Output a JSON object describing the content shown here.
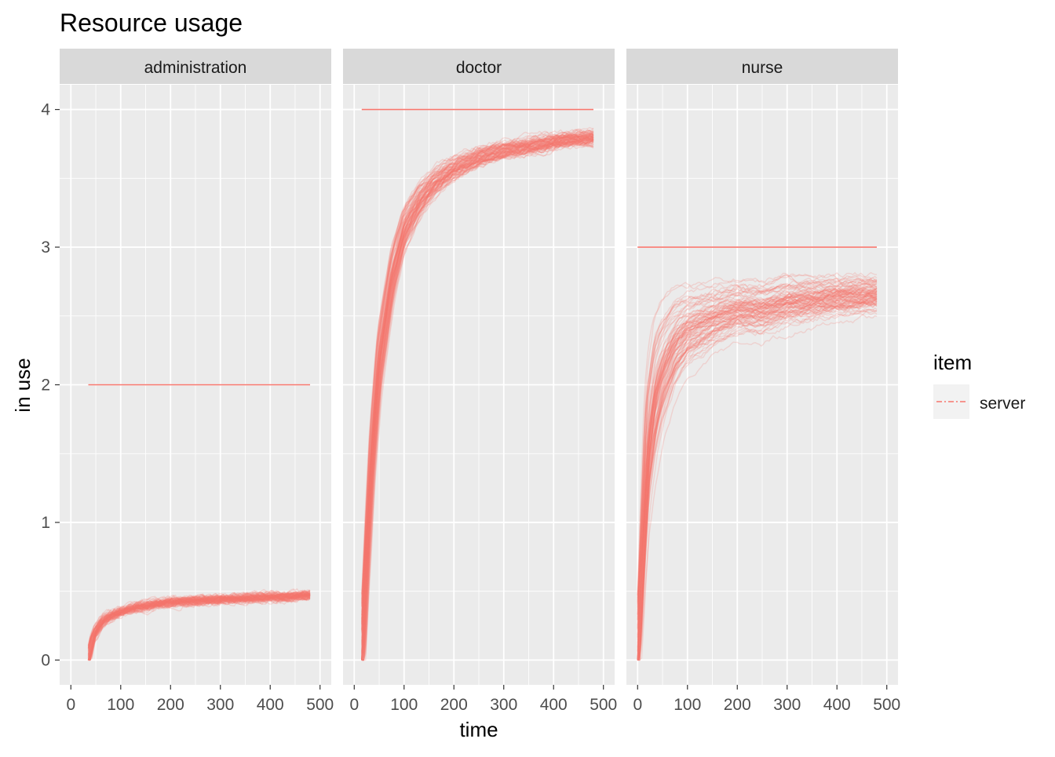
{
  "chart_data": {
    "type": "line",
    "title": "Resource usage",
    "xlabel": "time",
    "ylabel": "in use",
    "xlim": [
      0,
      500
    ],
    "ylim": [
      0,
      4
    ],
    "x_ticks": [
      "0",
      "100",
      "200",
      "300",
      "400",
      "500"
    ],
    "y_ticks": [
      "0",
      "1",
      "2",
      "3",
      "4"
    ],
    "grid": true,
    "legend": {
      "title": "item",
      "placement": "right",
      "entries": [
        {
          "label": "server",
          "color": "#F8766D",
          "style": "dashed"
        }
      ]
    },
    "line_color": "#F8766D",
    "series_note": "100 replications per panel, semi-transparent lines",
    "panels": [
      {
        "name": "administration",
        "capacity": {
          "x": [
            35,
            480
          ],
          "y": 2
        },
        "usage_envelope": {
          "x": [
            35,
            45,
            55,
            65,
            80,
            100,
            130,
            160,
            200,
            250,
            300,
            350,
            400,
            440,
            480
          ],
          "y_mean": [
            0.0,
            0.18,
            0.24,
            0.29,
            0.32,
            0.35,
            0.38,
            0.4,
            0.42,
            0.43,
            0.44,
            0.45,
            0.46,
            0.46,
            0.47
          ],
          "spread": [
            0.0,
            0.05,
            0.05,
            0.04,
            0.04,
            0.03,
            0.03,
            0.03,
            0.02,
            0.02,
            0.02,
            0.02,
            0.02,
            0.02,
            0.02
          ]
        }
      },
      {
        "name": "doctor",
        "capacity": {
          "x": [
            15,
            480
          ],
          "y": 4
        },
        "usage_envelope": {
          "x": [
            15,
            25,
            35,
            50,
            75,
            100,
            130,
            160,
            200,
            250,
            300,
            350,
            400,
            440,
            480
          ],
          "y_mean": [
            0.0,
            0.8,
            1.5,
            2.2,
            2.8,
            3.15,
            3.35,
            3.48,
            3.58,
            3.66,
            3.71,
            3.74,
            3.77,
            3.79,
            3.8
          ],
          "spread": [
            0.0,
            0.35,
            0.45,
            0.45,
            0.35,
            0.25,
            0.2,
            0.15,
            0.12,
            0.1,
            0.09,
            0.08,
            0.07,
            0.07,
            0.07
          ]
        }
      },
      {
        "name": "nurse",
        "capacity": {
          "x": [
            0,
            480
          ],
          "y": 3
        },
        "usage_envelope": {
          "x": [
            0,
            10,
            20,
            35,
            50,
            75,
            100,
            130,
            160,
            200,
            250,
            300,
            350,
            400,
            440,
            480
          ],
          "y_mean": [
            0.0,
            0.8,
            1.5,
            1.9,
            2.1,
            2.3,
            2.4,
            2.45,
            2.5,
            2.55,
            2.55,
            2.6,
            2.62,
            2.64,
            2.65,
            2.66
          ],
          "spread": [
            0.0,
            0.6,
            0.8,
            0.8,
            0.7,
            0.55,
            0.45,
            0.4,
            0.35,
            0.3,
            0.3,
            0.28,
            0.25,
            0.22,
            0.22,
            0.2
          ]
        }
      }
    ]
  }
}
